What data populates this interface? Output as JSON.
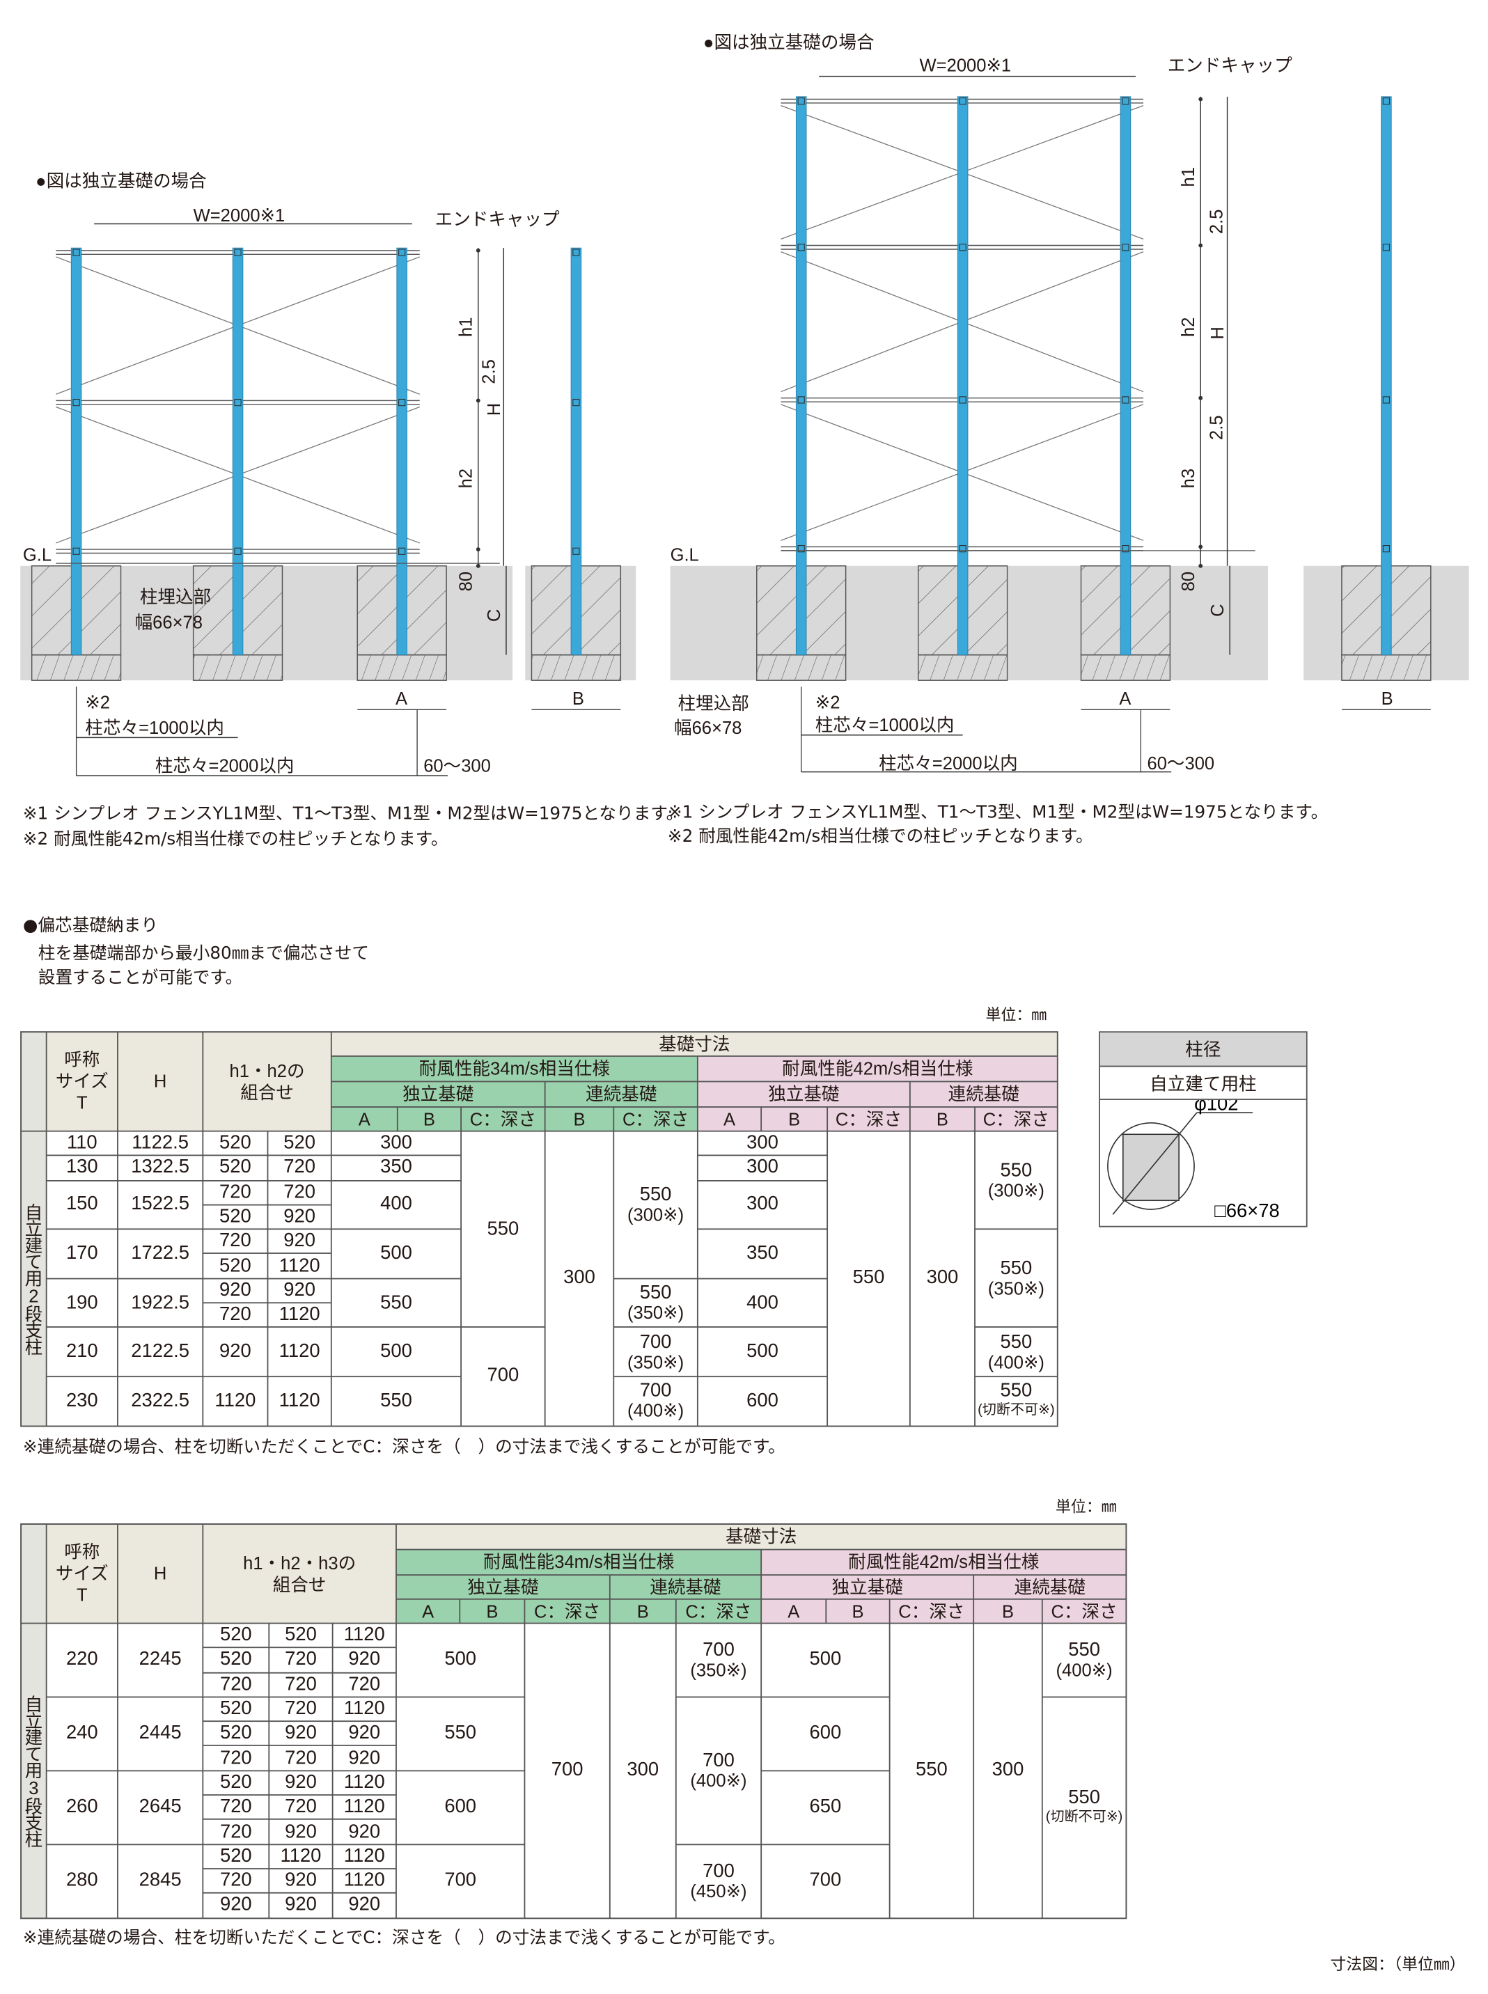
{
  "colors": {
    "post": "#3aa8d8",
    "ground": "#d9d9d9",
    "green_header": "#9bd2ae",
    "pink_header": "#ebd4e0",
    "beige_header": "#ebe9dd"
  },
  "diagram_left": {
    "title": "●図は独立基礎の場合",
    "width_label": "W=2000※1",
    "end_cap": "エンドキャップ",
    "gl": "G.L",
    "h1": "h1",
    "h2": "h2",
    "pitch25": "2.5",
    "H": "H",
    "d80": "80",
    "C": "C",
    "embed1": "柱埋込部",
    "embed2": "幅66×78",
    "note2": "※2",
    "pitch1000": "柱芯々=1000以内",
    "pitch2000": "柱芯々=2000以内",
    "offset": "60～300",
    "A": "A",
    "B": "B"
  },
  "diagram_right": {
    "title": "●図は独立基礎の場合",
    "width_label": "W=2000※1",
    "end_cap": "エンドキャップ",
    "gl": "G.L",
    "h1": "h1",
    "h2": "h2",
    "h3": "h3",
    "pitch25a": "2.5",
    "pitch25b": "2.5",
    "H": "H",
    "d80": "80",
    "C": "C",
    "embed1": "柱埋込部",
    "embed2": "幅66×78",
    "note2": "※2",
    "pitch1000": "柱芯々=1000以内",
    "pitch2000": "柱芯々=2000以内",
    "offset": "60～300",
    "A": "A",
    "B": "B"
  },
  "notes": {
    "n1": "※1 シンプレオ フェンスYL1M型、T1～T3型、M1型・M2型はW=1975となります。",
    "n2": "※2 耐風性能42m/s相当仕様での柱ピッチとなります。"
  },
  "offset_section": {
    "title": "●偏芯基礎納まり",
    "line1": "柱を基礎端部から最小80㎜まで偏芯させて",
    "line2": "設置することが可能です。"
  },
  "pillar": {
    "title": "柱径",
    "subtitle": "自立建て用柱",
    "diameter": "φ102",
    "section": "□66×78"
  },
  "table1": {
    "unit": "単位：㎜",
    "footnote": "※連続基礎の場合、柱を切断いただくことでC：深さを（　）の寸法まで浅くすることが可能です。",
    "rows": [
      [
        {
          "t": "",
          "rs": 4,
          "k": "s"
        },
        {
          "t": "呼称\nサイズ\nT",
          "rs": 4,
          "k": "b"
        },
        {
          "t": "H",
          "rs": 4,
          "k": "b"
        },
        {
          "t": "h1・h2の\n組合せ",
          "rs": 4,
          "cs": 2,
          "k": "b"
        },
        {
          "t": "基礎寸法",
          "cs": 10,
          "k": "b"
        }
      ],
      [
        {
          "t": "耐風性能34m/s相当仕様",
          "cs": 5,
          "k": "g"
        },
        {
          "t": "耐風性能42m/s相当仕様",
          "cs": 5,
          "k": "p"
        }
      ],
      [
        {
          "t": "独立基礎",
          "cs": 3,
          "k": "g"
        },
        {
          "t": "連続基礎",
          "cs": 2,
          "k": "g"
        },
        {
          "t": "独立基礎",
          "cs": 3,
          "k": "p"
        },
        {
          "t": "連続基礎",
          "cs": 2,
          "k": "p"
        }
      ],
      [
        {
          "t": "A",
          "k": "g"
        },
        {
          "t": "B",
          "k": "g"
        },
        {
          "t": "C：深さ",
          "k": "g"
        },
        {
          "t": "B",
          "k": "g"
        },
        {
          "t": "C：深さ",
          "k": "g"
        },
        {
          "t": "A",
          "k": "p"
        },
        {
          "t": "B",
          "k": "p"
        },
        {
          "t": "C：深さ",
          "k": "p"
        },
        {
          "t": "B",
          "k": "p"
        },
        {
          "t": "C：深さ",
          "k": "p"
        }
      ],
      [
        {
          "t": "自立建て用2段支柱",
          "rs": 12,
          "k": "s",
          "v": 1
        },
        {
          "t": "110"
        },
        {
          "t": "1122.5"
        },
        {
          "t": "520"
        },
        {
          "t": "520"
        },
        {
          "t": "300",
          "cs": 2
        },
        {
          "t": "550",
          "rs": 8
        },
        {
          "t": "300",
          "rs": 12
        },
        {
          "t": "550",
          "n": "(300※)",
          "rs": 6
        },
        {
          "t": "300",
          "cs": 2
        },
        {
          "t": "550",
          "rs": 12
        },
        {
          "t": "300",
          "rs": 12
        },
        {
          "t": "550",
          "n": "(300※)",
          "rs": 4
        }
      ],
      [
        {
          "t": "130"
        },
        {
          "t": "1322.5"
        },
        {
          "t": "520"
        },
        {
          "t": "720"
        },
        {
          "t": "350",
          "cs": 2
        },
        {
          "t": "300",
          "cs": 2
        }
      ],
      [
        {
          "t": "150",
          "rs": 2
        },
        {
          "t": "1522.5",
          "rs": 2
        },
        {
          "t": "720"
        },
        {
          "t": "720"
        },
        {
          "t": "400",
          "cs": 2,
          "rs": 2
        },
        {
          "t": "300",
          "cs": 2,
          "rs": 2
        }
      ],
      [
        {
          "t": "520"
        },
        {
          "t": "920"
        }
      ],
      [
        {
          "t": "170",
          "rs": 2
        },
        {
          "t": "1722.5",
          "rs": 2
        },
        {
          "t": "720"
        },
        {
          "t": "920"
        },
        {
          "t": "500",
          "cs": 2,
          "rs": 2
        },
        {
          "t": "350",
          "cs": 2,
          "rs": 2
        },
        {
          "t": "550",
          "n": "(350※)",
          "rs": 4
        }
      ],
      [
        {
          "t": "520"
        },
        {
          "t": "1120"
        }
      ],
      [
        {
          "t": "190",
          "rs": 2
        },
        {
          "t": "1922.5",
          "rs": 2
        },
        {
          "t": "920"
        },
        {
          "t": "920"
        },
        {
          "t": "550",
          "cs": 2,
          "rs": 2
        },
        {
          "t": "550",
          "n": "(350※)",
          "rs": 2
        },
        {
          "t": "400",
          "cs": 2,
          "rs": 2
        }
      ],
      [
        {
          "t": "720"
        },
        {
          "t": "1120"
        }
      ],
      [
        {
          "t": "210",
          "rs": 2
        },
        {
          "t": "2122.5",
          "rs": 2
        },
        {
          "t": "920",
          "rs": 2
        },
        {
          "t": "1120",
          "rs": 2
        },
        {
          "t": "500",
          "cs": 2,
          "rs": 2
        },
        {
          "t": "700",
          "rs": 4
        },
        {
          "t": "700",
          "n": "(350※)",
          "rs": 2
        },
        {
          "t": "500",
          "cs": 2,
          "rs": 2
        },
        {
          "t": "550",
          "n": "(400※)",
          "rs": 2
        }
      ],
      [],
      [
        {
          "t": "230",
          "rs": 2
        },
        {
          "t": "2322.5",
          "rs": 2
        },
        {
          "t": "1120",
          "rs": 2
        },
        {
          "t": "1120",
          "rs": 2
        },
        {
          "t": "550",
          "cs": 2,
          "rs": 2
        },
        {
          "t": "700",
          "n": "(400※)",
          "rs": 2
        },
        {
          "t": "600",
          "cs": 2,
          "rs": 2
        },
        {
          "t": "550",
          "n": "(切断不可※)",
          "rs": 2
        }
      ],
      []
    ]
  },
  "table2": {
    "unit": "単位：㎜",
    "footnote": "※連続基礎の場合、柱を切断いただくことでC：深さを（　）の寸法まで浅くすることが可能です。",
    "rows": [
      [
        {
          "t": "",
          "rs": 4,
          "k": "s"
        },
        {
          "t": "呼称\nサイズ\nT",
          "rs": 4,
          "k": "b"
        },
        {
          "t": "H",
          "rs": 4,
          "k": "b"
        },
        {
          "t": "h1・h2・h3の\n組合せ",
          "rs": 4,
          "cs": 3,
          "k": "b"
        },
        {
          "t": "基礎寸法",
          "cs": 10,
          "k": "b"
        }
      ],
      [
        {
          "t": "耐風性能34m/s相当仕様",
          "cs": 5,
          "k": "g"
        },
        {
          "t": "耐風性能42m/s相当仕様",
          "cs": 5,
          "k": "p"
        }
      ],
      [
        {
          "t": "独立基礎",
          "cs": 3,
          "k": "g"
        },
        {
          "t": "連続基礎",
          "cs": 2,
          "k": "g"
        },
        {
          "t": "独立基礎",
          "cs": 3,
          "k": "p"
        },
        {
          "t": "連続基礎",
          "cs": 2,
          "k": "p"
        }
      ],
      [
        {
          "t": "A",
          "k": "g"
        },
        {
          "t": "B",
          "k": "g"
        },
        {
          "t": "C：深さ",
          "k": "g"
        },
        {
          "t": "B",
          "k": "g"
        },
        {
          "t": "C：深さ",
          "k": "g"
        },
        {
          "t": "A",
          "k": "p"
        },
        {
          "t": "B",
          "k": "p"
        },
        {
          "t": "C：深さ",
          "k": "p"
        },
        {
          "t": "B",
          "k": "p"
        },
        {
          "t": "C：深さ",
          "k": "p"
        }
      ],
      [
        {
          "t": "自立建て用3段支柱",
          "rs": 12,
          "k": "s",
          "v": 1
        },
        {
          "t": "220",
          "rs": 3
        },
        {
          "t": "2245",
          "rs": 3
        },
        {
          "t": "520"
        },
        {
          "t": "520"
        },
        {
          "t": "1120"
        },
        {
          "t": "500",
          "cs": 2,
          "rs": 3
        },
        {
          "t": "700",
          "rs": 12
        },
        {
          "t": "300",
          "rs": 12
        },
        {
          "t": "700",
          "n": "(350※)",
          "rs": 3
        },
        {
          "t": "500",
          "cs": 2,
          "rs": 3
        },
        {
          "t": "550",
          "rs": 12
        },
        {
          "t": "300",
          "rs": 12
        },
        {
          "t": "550",
          "n": "(400※)",
          "rs": 3
        }
      ],
      [
        {
          "t": "520"
        },
        {
          "t": "720"
        },
        {
          "t": "920"
        }
      ],
      [
        {
          "t": "720"
        },
        {
          "t": "720"
        },
        {
          "t": "720"
        }
      ],
      [
        {
          "t": "240",
          "rs": 3
        },
        {
          "t": "2445",
          "rs": 3
        },
        {
          "t": "520"
        },
        {
          "t": "720"
        },
        {
          "t": "1120"
        },
        {
          "t": "550",
          "cs": 2,
          "rs": 3
        },
        {
          "t": "700",
          "n": "(400※)",
          "rs": 6
        },
        {
          "t": "600",
          "cs": 2,
          "rs": 3
        },
        {
          "t": "550",
          "n": "(切断不可※)",
          "rs": 9
        }
      ],
      [
        {
          "t": "520"
        },
        {
          "t": "920"
        },
        {
          "t": "920"
        }
      ],
      [
        {
          "t": "720"
        },
        {
          "t": "720"
        },
        {
          "t": "920"
        }
      ],
      [
        {
          "t": "260",
          "rs": 3
        },
        {
          "t": "2645",
          "rs": 3
        },
        {
          "t": "520"
        },
        {
          "t": "920"
        },
        {
          "t": "1120"
        },
        {
          "t": "600",
          "cs": 2,
          "rs": 3
        },
        {
          "t": "650",
          "cs": 2,
          "rs": 3
        }
      ],
      [
        {
          "t": "720"
        },
        {
          "t": "720"
        },
        {
          "t": "1120"
        }
      ],
      [
        {
          "t": "720"
        },
        {
          "t": "920"
        },
        {
          "t": "920"
        }
      ],
      [
        {
          "t": "280",
          "rs": 3
        },
        {
          "t": "2845",
          "rs": 3
        },
        {
          "t": "520"
        },
        {
          "t": "1120"
        },
        {
          "t": "1120"
        },
        {
          "t": "700",
          "cs": 2,
          "rs": 3
        },
        {
          "t": "700",
          "n": "(450※)",
          "rs": 3
        },
        {
          "t": "700",
          "cs": 2,
          "rs": 3
        }
      ],
      [
        {
          "t": "720"
        },
        {
          "t": "920"
        },
        {
          "t": "1120"
        }
      ],
      [
        {
          "t": "920"
        },
        {
          "t": "920"
        },
        {
          "t": "920"
        }
      ]
    ]
  },
  "footer": {
    "scale_note": "寸法図：（単位㎜）"
  }
}
